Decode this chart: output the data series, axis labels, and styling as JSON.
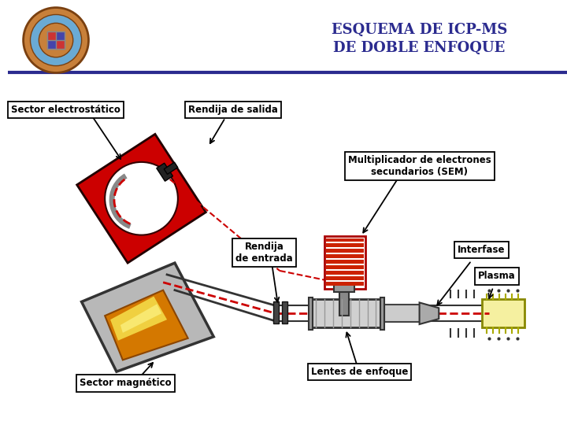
{
  "title_line1": "ESQUEMA DE ICP-MS",
  "title_line2": "DE DOBLE ENFOQUE",
  "title_color": "#2b2b8f",
  "title_fontsize": 13,
  "white": "#ffffff",
  "label_sector_electrostatico": "Sector electrostático",
  "label_rendija_salida": "Rendija de salida",
  "label_multiplicador": "Multiplicador de electrones\nsecundarios (SEM)",
  "label_rendija_entrada": "Rendija\nde entrada",
  "label_interfase": "Interfase",
  "label_plasma": "Plasma",
  "label_sector_magnetico": "Sector magnético",
  "label_lentes": "Lentes de enfoque",
  "label_fontsize": 8,
  "red_sector": "#cc0000",
  "dashed_color": "#cc0000",
  "gray_mag": "#aaaaaa",
  "orange_color": "#e8980a",
  "separator_color": "#2b2b8f",
  "logo_outer": "#c8803a",
  "logo_mid": "#6aaad4",
  "logo_inner": "#c8803a"
}
